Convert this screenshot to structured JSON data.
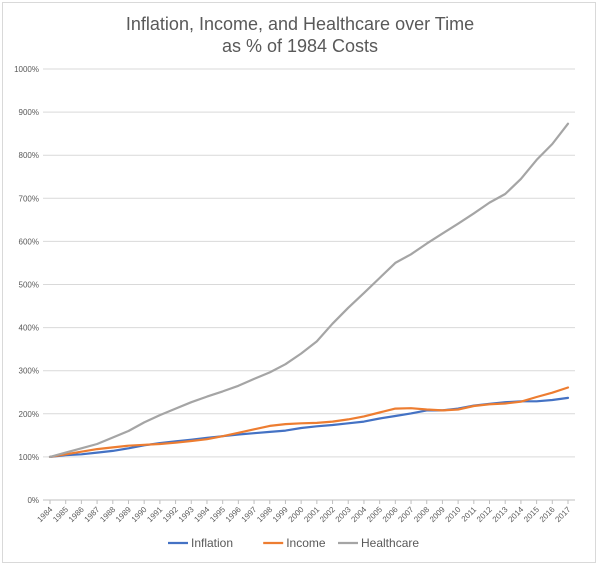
{
  "chart_data": {
    "type": "line",
    "title": [
      "Inflation, Income, and Healthcare over Time",
      "as % of 1984 Costs"
    ],
    "xlabel": "",
    "ylabel": "",
    "ylim": [
      0,
      1000
    ],
    "yticks": [
      "0%",
      "100%",
      "200%",
      "300%",
      "400%",
      "500%",
      "600%",
      "700%",
      "800%",
      "900%",
      "1000%"
    ],
    "grid": true,
    "legend": "bottom",
    "x": [
      "1984",
      "1985",
      "1986",
      "1987",
      "1988",
      "1989",
      "1990",
      "1991",
      "1992",
      "1993",
      "1994",
      "1995",
      "1996",
      "1997",
      "1998",
      "1999",
      "2000",
      "2001",
      "2002",
      "2003",
      "2004",
      "2005",
      "2006",
      "2007",
      "2008",
      "2009",
      "2010",
      "2011",
      "2012",
      "2013",
      "2014",
      "2015",
      "2016",
      "2017"
    ],
    "series": [
      {
        "name": "Inflation",
        "color": "#4472c4",
        "values": [
          100,
          104,
          106,
          110,
          114,
          120,
          127,
          132,
          136,
          140,
          144,
          148,
          152,
          155,
          158,
          161,
          167,
          171,
          174,
          178,
          182,
          189,
          195,
          201,
          208,
          208,
          212,
          219,
          223,
          227,
          229,
          229,
          232,
          237
        ]
      },
      {
        "name": "Income",
        "color": "#ed7d31",
        "values": [
          100,
          106,
          112,
          118,
          122,
          126,
          128,
          130,
          133,
          137,
          141,
          148,
          156,
          164,
          172,
          176,
          178,
          179,
          182,
          187,
          194,
          203,
          212,
          213,
          210,
          208,
          210,
          218,
          222,
          224,
          228,
          239,
          249,
          261
        ]
      },
      {
        "name": "Healthcare",
        "color": "#a5a5a5",
        "values": [
          100,
          110,
          120,
          130,
          145,
          160,
          180,
          197,
          212,
          227,
          240,
          252,
          265,
          281,
          296,
          315,
          340,
          368,
          409,
          446,
          480,
          515,
          550,
          570,
          595,
          618,
          641,
          665,
          690,
          710,
          745,
          789,
          826,
          873
        ]
      }
    ]
  }
}
